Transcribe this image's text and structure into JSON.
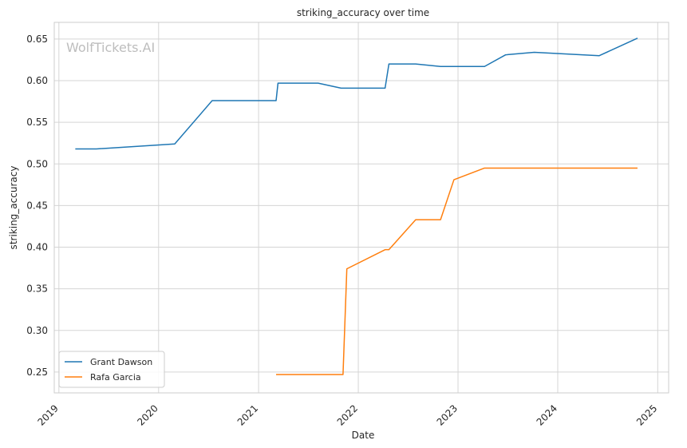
{
  "chart_data": {
    "type": "line",
    "title": "striking_accuracy over time",
    "xlabel": "Date",
    "ylabel": "striking_accuracy",
    "watermark": "WolfTickets.AI",
    "x_type": "date",
    "xlim": [
      "2018-12-15",
      "2025-02-10"
    ],
    "ylim": [
      0.225,
      0.67
    ],
    "x_ticks": [
      "2019",
      "2020",
      "2021",
      "2022",
      "2023",
      "2024",
      "2025"
    ],
    "y_ticks": [
      "0.25",
      "0.30",
      "0.35",
      "0.40",
      "0.45",
      "0.50",
      "0.55",
      "0.60",
      "0.65"
    ],
    "grid": true,
    "legend_position": "lower-left",
    "series": [
      {
        "name": "Grant Dawson",
        "color": "#1f77b4",
        "points": [
          [
            "2019-03-02",
            0.518
          ],
          [
            "2019-05-18",
            0.518
          ],
          [
            "2020-02-29",
            0.524
          ],
          [
            "2020-07-15",
            0.576
          ],
          [
            "2021-03-06",
            0.576
          ],
          [
            "2021-03-13",
            0.597
          ],
          [
            "2021-08-07",
            0.597
          ],
          [
            "2021-10-30",
            0.591
          ],
          [
            "2022-04-09",
            0.591
          ],
          [
            "2022-04-23",
            0.62
          ],
          [
            "2022-07-30",
            0.62
          ],
          [
            "2022-10-29",
            0.617
          ],
          [
            "2023-04-08",
            0.617
          ],
          [
            "2023-06-24",
            0.631
          ],
          [
            "2023-10-07",
            0.634
          ],
          [
            "2024-06-01",
            0.63
          ],
          [
            "2024-10-19",
            0.651
          ]
        ]
      },
      {
        "name": "Rafa Garcia",
        "color": "#ff7f0e",
        "points": [
          [
            "2021-03-06",
            0.247
          ],
          [
            "2021-11-06",
            0.247
          ],
          [
            "2021-11-20",
            0.374
          ],
          [
            "2022-04-09",
            0.397
          ],
          [
            "2022-04-23",
            0.397
          ],
          [
            "2022-07-30",
            0.433
          ],
          [
            "2022-10-29",
            0.433
          ],
          [
            "2022-12-17",
            0.481
          ],
          [
            "2023-04-08",
            0.495
          ],
          [
            "2024-10-19",
            0.495
          ]
        ]
      }
    ]
  }
}
